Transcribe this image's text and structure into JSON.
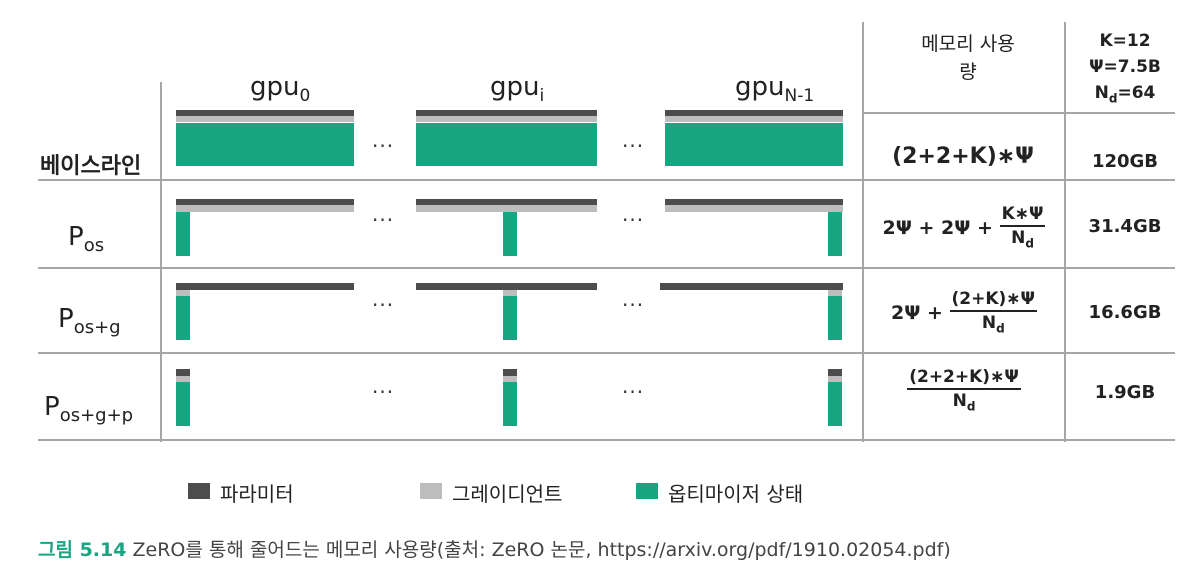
{
  "header": {
    "gpu_0": "gpu",
    "gpu_0_sub": "0",
    "gpu_i": "gpu",
    "gpu_i_sub": "i",
    "gpu_n": "gpu",
    "gpu_n_sub": "N-1",
    "memory_col": "메모리 사용량",
    "params": [
      "K=12",
      "Ψ=7.5B",
      "N",
      "d",
      "=64"
    ]
  },
  "rows": [
    {
      "label": "베이스라인",
      "formula": "(2+2+K)∗Ψ",
      "mem": "120GB"
    },
    {
      "label": "P",
      "label_sub": "os",
      "formula_pre": "2Ψ + 2Ψ +",
      "num": "K∗Ψ",
      "den": "N",
      "den_sub": "d",
      "mem": "31.4GB"
    },
    {
      "label": "P",
      "label_sub": "os+g",
      "formula_pre": "2Ψ +",
      "num": "(2+K)∗Ψ",
      "den": "N",
      "den_sub": "d",
      "mem": "16.6GB"
    },
    {
      "label": "P",
      "label_sub": "os+g+p",
      "num": "(2+2+K)∗Ψ",
      "den": "N",
      "den_sub": "d",
      "mem": "1.9GB"
    }
  ],
  "dots": "...",
  "legend": [
    {
      "label": "파라미터",
      "color": "#4d4d4d"
    },
    {
      "label": "그레이디언트",
      "color": "#bdbdbd"
    },
    {
      "label": "옵티마이저 상태",
      "color": "#17a582"
    }
  ],
  "caption": {
    "label": "그림 5.14",
    "text": " ZeRO를 통해 줄어드는 메모리 사용량(출처: ZeRO 논문, https://arxiv.org/pdf/1910.02054.pdf)"
  }
}
